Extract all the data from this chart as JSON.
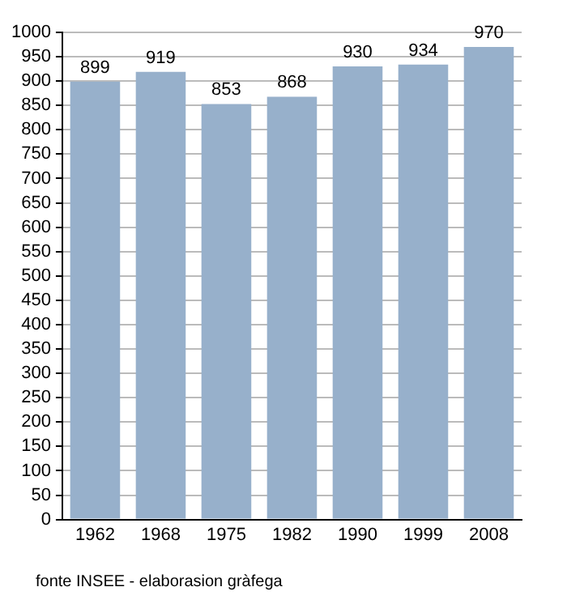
{
  "chart_data": {
    "type": "bar",
    "categories": [
      "1962",
      "1968",
      "1975",
      "1982",
      "1990",
      "1999",
      "2008"
    ],
    "values": [
      899,
      919,
      853,
      868,
      930,
      934,
      970
    ],
    "color": "#97b0cb",
    "ylim": [
      0,
      1000
    ],
    "yticks": [
      0,
      50,
      100,
      150,
      200,
      250,
      300,
      350,
      400,
      450,
      500,
      550,
      600,
      650,
      700,
      750,
      800,
      850,
      900,
      950,
      1000
    ],
    "grid": "y",
    "data_labels": true,
    "annotations": [
      "fonte INSEE - elaborasion gràfega"
    ]
  }
}
